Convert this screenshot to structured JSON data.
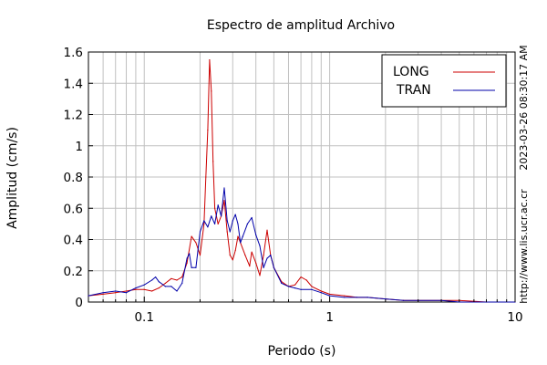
{
  "chart_data": {
    "type": "line",
    "title": "Espectro de amplitud Archivo",
    "xlabel": "Periodo (s)",
    "ylabel": "Amplitud (cm/s)",
    "xscale": "log",
    "xlim": [
      0.05,
      10
    ],
    "ylim": [
      0,
      1.6
    ],
    "xticks": [
      {
        "value": 0.1,
        "label": "0.1"
      },
      {
        "value": 1,
        "label": "1"
      },
      {
        "value": 10,
        "label": "10"
      }
    ],
    "yticks": [
      {
        "value": 0,
        "label": "0"
      },
      {
        "value": 0.2,
        "label": "0.2"
      },
      {
        "value": 0.4,
        "label": "0.4"
      },
      {
        "value": 0.6,
        "label": "0.6"
      },
      {
        "value": 0.8,
        "label": "0.8"
      },
      {
        "value": 1,
        "label": "1"
      },
      {
        "value": 1.2,
        "label": "1.2"
      },
      {
        "value": 1.4,
        "label": "1.4"
      },
      {
        "value": 1.6,
        "label": "1.6"
      }
    ],
    "grid": true,
    "legend_position": "top-right",
    "series": [
      {
        "name": "LONG",
        "color": "#cc0000",
        "x": [
          0.05,
          0.06,
          0.07,
          0.08,
          0.09,
          0.1,
          0.11,
          0.12,
          0.13,
          0.14,
          0.15,
          0.16,
          0.17,
          0.18,
          0.19,
          0.2,
          0.21,
          0.215,
          0.22,
          0.225,
          0.23,
          0.235,
          0.24,
          0.25,
          0.26,
          0.27,
          0.28,
          0.29,
          0.3,
          0.31,
          0.32,
          0.33,
          0.35,
          0.37,
          0.38,
          0.4,
          0.42,
          0.44,
          0.46,
          0.48,
          0.5,
          0.55,
          0.6,
          0.65,
          0.7,
          0.75,
          0.8,
          0.9,
          1.0,
          1.2,
          1.4,
          1.6,
          2.0,
          2.5,
          3.0,
          4.0,
          5.0,
          7.0,
          10.0
        ],
        "y": [
          0.04,
          0.05,
          0.06,
          0.07,
          0.08,
          0.08,
          0.07,
          0.09,
          0.12,
          0.15,
          0.14,
          0.16,
          0.25,
          0.42,
          0.38,
          0.3,
          0.5,
          0.8,
          1.1,
          1.55,
          1.35,
          0.9,
          0.6,
          0.5,
          0.55,
          0.65,
          0.45,
          0.3,
          0.27,
          0.33,
          0.42,
          0.38,
          0.3,
          0.23,
          0.32,
          0.25,
          0.17,
          0.3,
          0.46,
          0.3,
          0.22,
          0.13,
          0.1,
          0.11,
          0.16,
          0.14,
          0.1,
          0.07,
          0.05,
          0.04,
          0.03,
          0.03,
          0.02,
          0.01,
          0.01,
          0.01,
          0.01,
          0.0,
          0.0
        ]
      },
      {
        "name": "TRAN",
        "color": "#0000aa",
        "x": [
          0.05,
          0.06,
          0.07,
          0.08,
          0.09,
          0.1,
          0.11,
          0.115,
          0.12,
          0.13,
          0.14,
          0.15,
          0.16,
          0.17,
          0.175,
          0.18,
          0.19,
          0.2,
          0.21,
          0.22,
          0.23,
          0.24,
          0.25,
          0.26,
          0.27,
          0.28,
          0.29,
          0.3,
          0.31,
          0.32,
          0.33,
          0.34,
          0.36,
          0.38,
          0.4,
          0.42,
          0.44,
          0.46,
          0.48,
          0.5,
          0.55,
          0.6,
          0.65,
          0.7,
          0.8,
          0.9,
          1.0,
          1.2,
          1.4,
          1.6,
          2.0,
          2.5,
          3.0,
          4.0,
          5.0,
          7.0,
          10.0
        ],
        "y": [
          0.04,
          0.06,
          0.07,
          0.06,
          0.09,
          0.11,
          0.14,
          0.16,
          0.13,
          0.1,
          0.1,
          0.07,
          0.12,
          0.28,
          0.31,
          0.22,
          0.22,
          0.45,
          0.52,
          0.48,
          0.55,
          0.5,
          0.62,
          0.55,
          0.73,
          0.52,
          0.45,
          0.52,
          0.56,
          0.5,
          0.38,
          0.42,
          0.5,
          0.54,
          0.43,
          0.36,
          0.22,
          0.28,
          0.3,
          0.22,
          0.12,
          0.1,
          0.09,
          0.08,
          0.08,
          0.06,
          0.04,
          0.03,
          0.03,
          0.03,
          0.02,
          0.01,
          0.01,
          0.01,
          0.0,
          0.0,
          0.0
        ]
      }
    ]
  },
  "side": {
    "timestamp": "2023-03-26 08:30:17 AM",
    "url": "http://www.lis.ucr.ac.cr"
  }
}
